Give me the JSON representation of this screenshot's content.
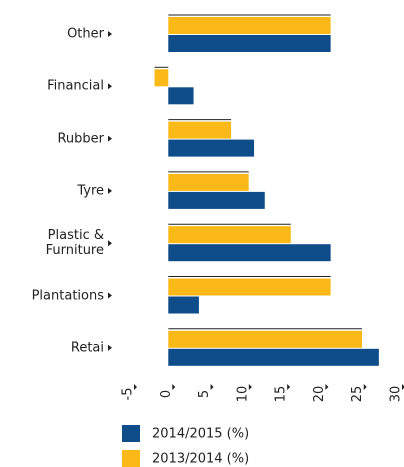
{
  "chart_data": {
    "type": "bar",
    "orientation": "horizontal",
    "categories": [
      "Other",
      "Financial",
      "Rubber",
      "Tyre",
      "Plastic & Furniture",
      "Plantations",
      "Retai"
    ],
    "series": [
      {
        "name": "2014/2015 (%)",
        "color": "#0f4c8a",
        "values": [
          21.2,
          3.3,
          11.2,
          12.6,
          21.2,
          4,
          27.5
        ]
      },
      {
        "name": "2013/2014 (%)",
        "color": "#fbb917",
        "values": [
          21.2,
          -1.8,
          8.2,
          10.5,
          16,
          21.2,
          25.3
        ]
      }
    ],
    "xlim": [
      -5,
      30
    ],
    "xticks": [
      -5,
      0,
      5,
      10,
      15,
      20,
      25,
      30
    ]
  }
}
